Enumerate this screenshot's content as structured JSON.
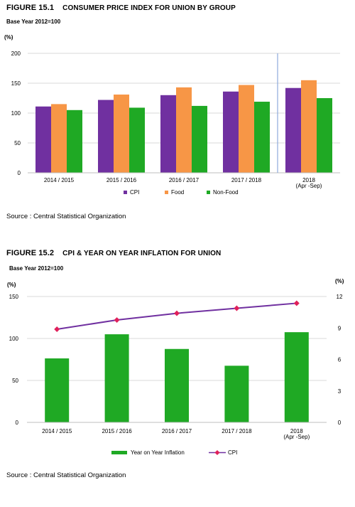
{
  "figure1": {
    "number": "FIGURE 15.1",
    "title": "CONSUMER PRICE INDEX FOR UNION BY GROUP",
    "base_note": "Base Year 2012=100",
    "unit": "(%)",
    "source": "Source : Central Statistical Organization"
  },
  "figure2": {
    "number": "FIGURE 15.2",
    "title": "CPI & YEAR ON YEAR INFLATION FOR UNION",
    "base_note": "Base Year 2012=100",
    "unit_left": "(%)",
    "unit_right": "(%)",
    "source": "Source : Central Statistical Organization"
  },
  "chart_data": [
    {
      "type": "bar",
      "categories": [
        [
          "2014 / 2015"
        ],
        [
          "2015 / 2016"
        ],
        [
          "2016 / 2017"
        ],
        [
          "2017 / 2018"
        ],
        [
          "2018",
          "(Apr -Sep)"
        ]
      ],
      "series": [
        {
          "name": "CPI",
          "color": "#7030a0",
          "values": [
            111,
            122,
            130,
            136,
            142
          ]
        },
        {
          "name": "Food",
          "color": "#f79646",
          "values": [
            115,
            131,
            143,
            147,
            155
          ]
        },
        {
          "name": "Non-Food",
          "color": "#1fa924",
          "values": [
            105,
            109,
            112,
            119,
            125
          ]
        }
      ],
      "ylim": [
        0,
        200
      ],
      "yticks": [
        "0",
        "50",
        "100",
        "150",
        "200"
      ],
      "grid": true,
      "divider_after_category": 3,
      "legend_position": "bottom"
    },
    {
      "type": "bar",
      "categories": [
        [
          "2014 / 2015"
        ],
        [
          "2015 / 2016"
        ],
        [
          "2016 / 2017"
        ],
        [
          "2017 / 2018"
        ],
        [
          "2018",
          "(Apr -Sep)"
        ]
      ],
      "bar_series": {
        "name": "Year on Year Inflation",
        "color": "#1fa924",
        "axis": "right",
        "values": [
          6.1,
          8.4,
          7.0,
          5.4,
          8.6
        ]
      },
      "line_series": {
        "name": "CPI",
        "color": "#7030a0",
        "marker_color": "#e0205a",
        "axis": "left",
        "values": [
          111,
          122,
          130,
          136,
          142
        ]
      },
      "ylim_left": [
        0,
        150
      ],
      "yticks_left": [
        "0",
        "50",
        "100",
        "150"
      ],
      "ylim_right": [
        0,
        12
      ],
      "yticks_right": [
        "0",
        "3",
        "6",
        "9",
        "12"
      ],
      "grid": true,
      "legend_position": "bottom"
    }
  ]
}
